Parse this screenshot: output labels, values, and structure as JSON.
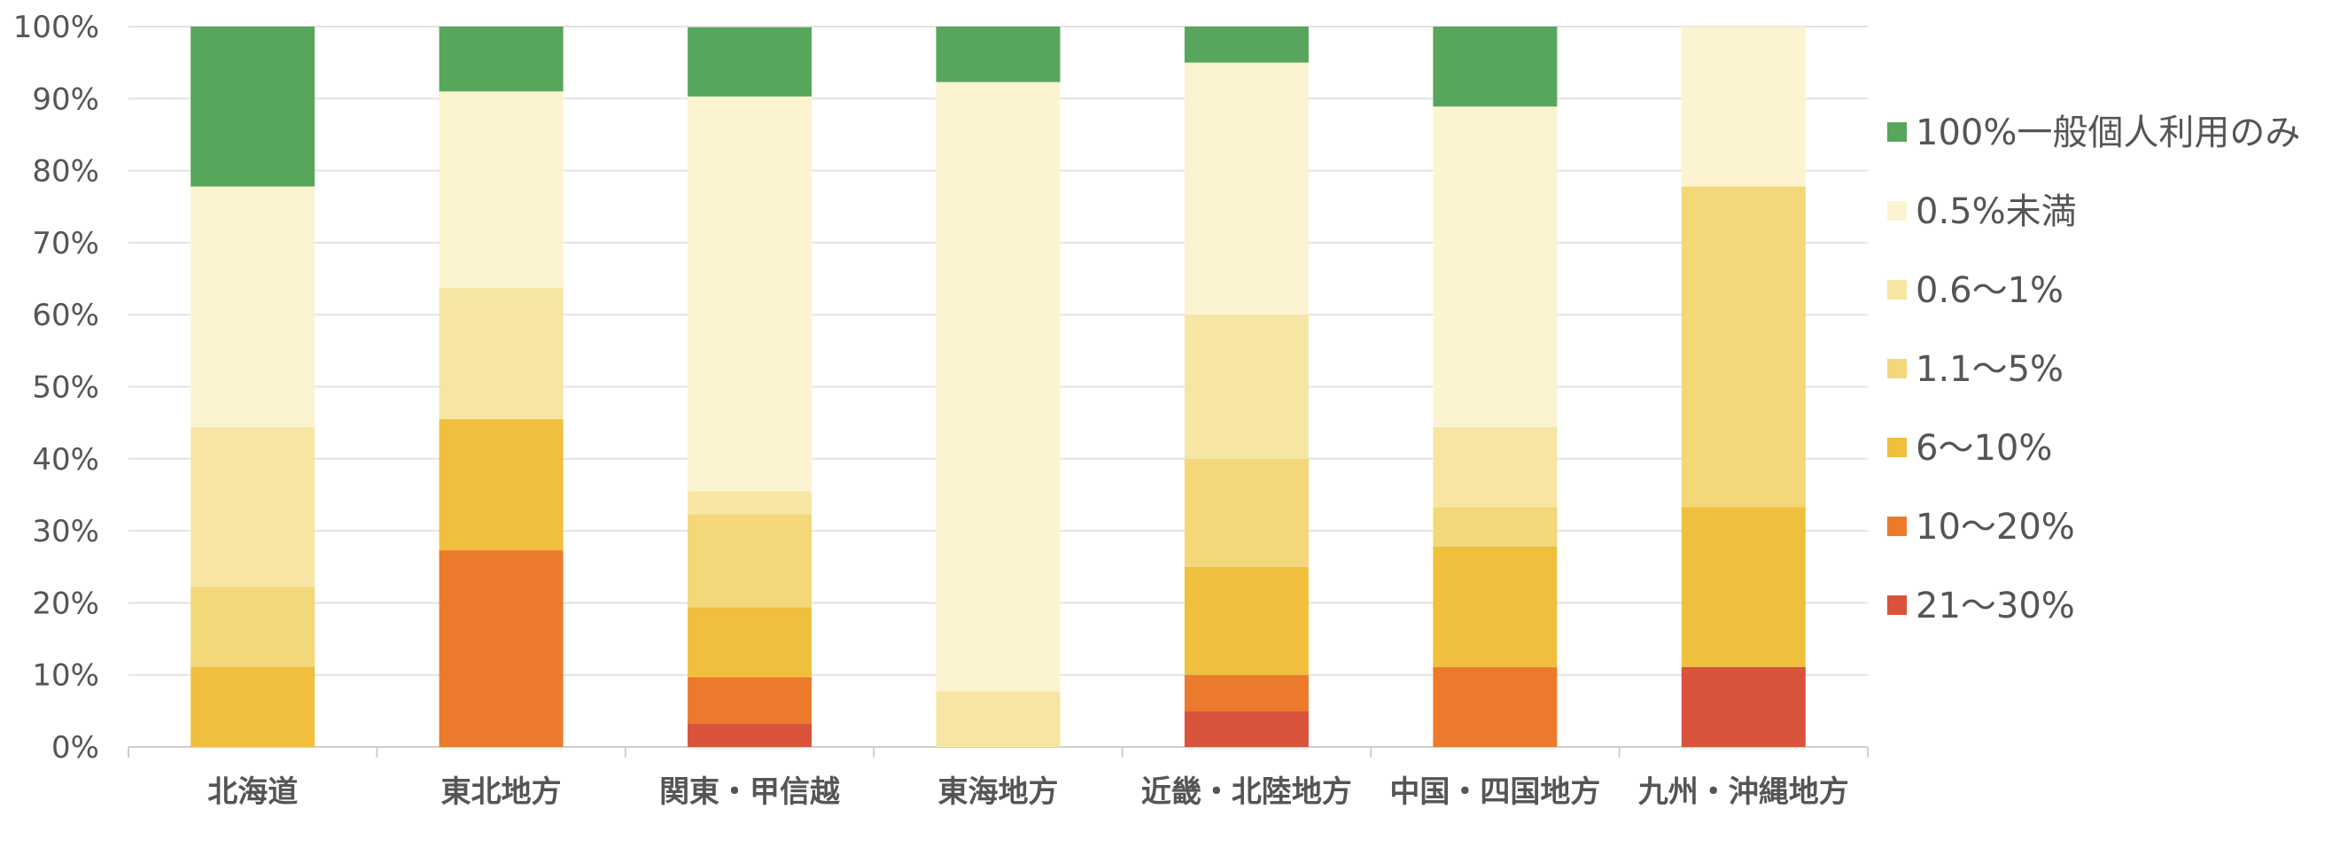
{
  "chart_data": {
    "type": "bar",
    "stacked": true,
    "categories": [
      "北海道",
      "東北地方",
      "関東・甲信越",
      "東海地方",
      "近畿・北陸地方",
      "中国・四国地方",
      "九州・沖縄地方"
    ],
    "ylim": [
      0,
      100
    ],
    "yticks": [
      "0%",
      "10%",
      "20%",
      "30%",
      "40%",
      "50%",
      "60%",
      "70%",
      "80%",
      "90%",
      "100%"
    ],
    "grid": true,
    "legend_position": "right",
    "series": [
      {
        "name": "21～30%",
        "color": "#d9523a",
        "values": [
          0,
          0,
          3.2,
          0,
          5.0,
          0,
          11.1
        ]
      },
      {
        "name": "10～20%",
        "color": "#ec7a2c",
        "values": [
          0,
          27.3,
          6.5,
          0,
          5.0,
          11.1,
          0
        ]
      },
      {
        "name": "6～10%",
        "color": "#f0bf3e",
        "values": [
          11.1,
          18.2,
          9.7,
          0,
          15.0,
          16.7,
          22.2
        ]
      },
      {
        "name": "1.1～5%",
        "color": "#f4d778",
        "values": [
          11.1,
          0,
          12.9,
          0,
          15.0,
          5.5,
          44.5
        ]
      },
      {
        "name": "0.6～1%",
        "color": "#f7e6a3",
        "values": [
          22.2,
          18.2,
          3.2,
          7.7,
          20.0,
          11.1,
          0
        ]
      },
      {
        "name": "0.5%未満",
        "color": "#fcf3d1",
        "values": [
          33.4,
          27.3,
          54.8,
          84.6,
          35.0,
          44.5,
          22.2
        ]
      },
      {
        "name": "100%一般個人利用のみ",
        "color": "#58a65c",
        "values": [
          22.2,
          9.0,
          9.6,
          7.7,
          5.0,
          11.1,
          0
        ]
      }
    ]
  }
}
